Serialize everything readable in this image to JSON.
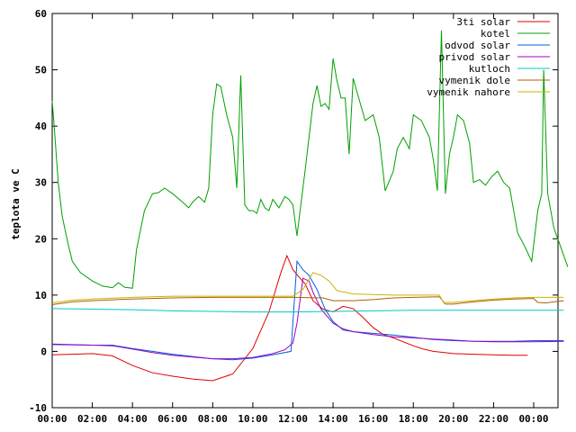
{
  "chart_data": {
    "type": "line",
    "title": "",
    "xlabel": "",
    "ylabel": "teplota ve C",
    "ylim": [
      -10,
      60
    ],
    "xlim": [
      "00:00",
      "24:00"
    ],
    "grid": false,
    "legend_position": "top-right",
    "x_ticks": [
      "00:00",
      "02:00",
      "04:00",
      "06:00",
      "08:00",
      "10:00",
      "12:00",
      "14:00",
      "16:00",
      "18:00",
      "20:00",
      "22:00",
      "00:00"
    ],
    "y_ticks": [
      -10,
      0,
      10,
      20,
      30,
      40,
      50,
      60
    ],
    "series": [
      {
        "name": "3ti solar",
        "color": "#e00000",
        "points": [
          [
            0,
            -0.6
          ],
          [
            1,
            -0.5
          ],
          [
            2,
            -0.4
          ],
          [
            3,
            -0.8
          ],
          [
            4,
            -2.5
          ],
          [
            5,
            -3.8
          ],
          [
            6,
            -4.4
          ],
          [
            7,
            -4.9
          ],
          [
            8,
            -5.2
          ],
          [
            9,
            -4.0
          ],
          [
            10,
            0.5
          ],
          [
            10.8,
            7.0
          ],
          [
            11.4,
            14.0
          ],
          [
            11.7,
            17.0
          ],
          [
            12.0,
            14.5
          ],
          [
            12.3,
            13.2
          ],
          [
            12.6,
            12.0
          ],
          [
            13.0,
            9.0
          ],
          [
            13.5,
            7.5
          ],
          [
            14.0,
            7.0
          ],
          [
            14.5,
            8.0
          ],
          [
            15.0,
            7.6
          ],
          [
            15.5,
            6.0
          ],
          [
            16.0,
            4.2
          ],
          [
            16.5,
            3.0
          ],
          [
            17.0,
            2.4
          ],
          [
            17.5,
            1.7
          ],
          [
            18.0,
            1.0
          ],
          [
            18.5,
            0.4
          ],
          [
            19,
            0.0
          ],
          [
            20,
            -0.4
          ],
          [
            21,
            -0.5
          ],
          [
            22,
            -0.6
          ],
          [
            23,
            -0.7
          ],
          [
            23.7,
            -0.7
          ]
        ]
      },
      {
        "name": "kotel",
        "color": "#00a000",
        "points": [
          [
            0,
            44.5
          ],
          [
            0.1,
            40
          ],
          [
            0.3,
            30
          ],
          [
            0.5,
            24
          ],
          [
            0.8,
            19
          ],
          [
            1.0,
            16
          ],
          [
            1.4,
            14
          ],
          [
            2,
            12.5
          ],
          [
            2.5,
            11.6
          ],
          [
            3,
            11.3
          ],
          [
            3.3,
            12.2
          ],
          [
            3.6,
            11.4
          ],
          [
            4,
            11.2
          ],
          [
            4.2,
            18
          ],
          [
            4.6,
            25
          ],
          [
            5,
            28
          ],
          [
            5.3,
            28.2
          ],
          [
            5.6,
            29
          ],
          [
            6,
            28
          ],
          [
            6.5,
            26.5
          ],
          [
            6.8,
            25.5
          ],
          [
            7,
            26.5
          ],
          [
            7.3,
            27.5
          ],
          [
            7.6,
            26.5
          ],
          [
            7.8,
            29
          ],
          [
            8,
            42
          ],
          [
            8.2,
            47.5
          ],
          [
            8.4,
            47
          ],
          [
            8.7,
            42
          ],
          [
            9,
            38
          ],
          [
            9.2,
            29
          ],
          [
            9.4,
            49
          ],
          [
            9.6,
            26
          ],
          [
            9.8,
            25
          ],
          [
            10.0,
            25
          ],
          [
            10.2,
            24.5
          ],
          [
            10.4,
            27
          ],
          [
            10.6,
            25.5
          ],
          [
            10.8,
            25
          ],
          [
            11.0,
            27
          ],
          [
            11.3,
            25.5
          ],
          [
            11.6,
            27.5
          ],
          [
            11.8,
            27
          ],
          [
            12.0,
            26
          ],
          [
            12.2,
            20.5
          ],
          [
            12.6,
            32
          ],
          [
            13.0,
            44
          ],
          [
            13.2,
            47.2
          ],
          [
            13.4,
            43.5
          ],
          [
            13.6,
            44
          ],
          [
            13.8,
            43
          ],
          [
            14.0,
            52
          ],
          [
            14.2,
            48
          ],
          [
            14.4,
            45
          ],
          [
            14.6,
            45
          ],
          [
            14.8,
            35
          ],
          [
            15.0,
            48.5
          ],
          [
            15.2,
            46
          ],
          [
            15.6,
            41
          ],
          [
            16,
            42
          ],
          [
            16.3,
            38
          ],
          [
            16.6,
            28.5
          ],
          [
            17,
            32
          ],
          [
            17.2,
            36
          ],
          [
            17.5,
            38
          ],
          [
            17.8,
            36
          ],
          [
            18,
            42
          ],
          [
            18.4,
            41
          ],
          [
            18.8,
            38
          ],
          [
            19,
            34
          ],
          [
            19.2,
            28.5
          ],
          [
            19.4,
            57
          ],
          [
            19.6,
            28
          ],
          [
            19.8,
            35
          ],
          [
            20,
            38
          ],
          [
            20.2,
            42
          ],
          [
            20.5,
            41
          ],
          [
            20.8,
            37
          ],
          [
            21,
            30
          ],
          [
            21.3,
            30.5
          ],
          [
            21.6,
            29.5
          ],
          [
            21.9,
            31
          ],
          [
            22.2,
            32
          ],
          [
            22.5,
            30
          ],
          [
            22.8,
            29
          ],
          [
            23.2,
            21
          ],
          [
            23.5,
            19
          ],
          [
            23.9,
            16
          ],
          [
            24.2,
            25
          ],
          [
            24.4,
            28
          ],
          [
            24.5,
            50
          ],
          [
            24.7,
            28
          ],
          [
            25,
            22
          ],
          [
            25.4,
            18
          ],
          [
            25.7,
            15
          ]
        ]
      },
      {
        "name": "odvod solar",
        "color": "#0060e0",
        "points": [
          [
            0,
            1.3
          ],
          [
            2,
            1.1
          ],
          [
            3,
            1.1
          ],
          [
            4,
            0.5
          ],
          [
            5,
            0.0
          ],
          [
            6,
            -0.5
          ],
          [
            7,
            -0.9
          ],
          [
            8,
            -1.3
          ],
          [
            9,
            -1.5
          ],
          [
            10,
            -1.2
          ],
          [
            11,
            -0.6
          ],
          [
            11.9,
            0.0
          ],
          [
            12.2,
            16.0
          ],
          [
            12.5,
            14.5
          ],
          [
            12.8,
            13.5
          ],
          [
            13.2,
            11.0
          ],
          [
            13.6,
            7.5
          ],
          [
            14.0,
            5.3
          ],
          [
            14.5,
            3.8
          ],
          [
            15,
            3.5
          ],
          [
            16,
            3.2
          ],
          [
            17,
            2.9
          ],
          [
            18,
            2.5
          ],
          [
            19,
            2.1
          ],
          [
            20,
            1.9
          ],
          [
            21,
            1.8
          ],
          [
            22,
            1.8
          ],
          [
            23,
            1.8
          ],
          [
            24,
            1.9
          ],
          [
            25.5,
            1.9
          ]
        ]
      },
      {
        "name": "privod solar",
        "color": "#a000c0",
        "points": [
          [
            0,
            1.2
          ],
          [
            2,
            1.1
          ],
          [
            3,
            1.0
          ],
          [
            4,
            0.4
          ],
          [
            5,
            -0.2
          ],
          [
            6,
            -0.7
          ],
          [
            7,
            -1.0
          ],
          [
            8,
            -1.3
          ],
          [
            9,
            -1.3
          ],
          [
            10,
            -1.1
          ],
          [
            11,
            -0.4
          ],
          [
            11.6,
            0.3
          ],
          [
            12.0,
            1.5
          ],
          [
            12.2,
            5.0
          ],
          [
            12.5,
            13.0
          ],
          [
            12.8,
            12.5
          ],
          [
            13.0,
            10.5
          ],
          [
            13.4,
            7.5
          ],
          [
            14.0,
            5.0
          ],
          [
            14.5,
            4.0
          ],
          [
            15,
            3.5
          ],
          [
            16,
            3.0
          ],
          [
            17,
            2.6
          ],
          [
            18,
            2.4
          ],
          [
            19,
            2.2
          ],
          [
            20,
            2.0
          ],
          [
            21,
            1.8
          ],
          [
            22,
            1.7
          ],
          [
            23,
            1.7
          ],
          [
            24,
            1.7
          ],
          [
            25.5,
            1.8
          ]
        ]
      },
      {
        "name": "kutloch",
        "color": "#00c8c8",
        "points": [
          [
            0,
            7.6
          ],
          [
            2,
            7.5
          ],
          [
            4,
            7.4
          ],
          [
            6,
            7.2
          ],
          [
            8,
            7.1
          ],
          [
            10,
            7.0
          ],
          [
            12,
            7.0
          ],
          [
            14,
            7.1
          ],
          [
            16,
            7.2
          ],
          [
            18,
            7.3
          ],
          [
            20,
            7.3
          ],
          [
            22,
            7.3
          ],
          [
            24,
            7.3
          ],
          [
            25.5,
            7.3
          ]
        ]
      },
      {
        "name": "vymenik dole",
        "color": "#b06000",
        "points": [
          [
            0,
            8.3
          ],
          [
            1,
            8.8
          ],
          [
            2,
            9.0
          ],
          [
            4,
            9.3
          ],
          [
            6,
            9.5
          ],
          [
            8,
            9.6
          ],
          [
            10,
            9.6
          ],
          [
            12,
            9.6
          ],
          [
            13.5,
            9.5
          ],
          [
            14,
            9.0
          ],
          [
            15,
            9.0
          ],
          [
            16,
            9.2
          ],
          [
            17,
            9.5
          ],
          [
            18,
            9.6
          ],
          [
            19.3,
            9.7
          ],
          [
            19.6,
            8.4
          ],
          [
            20,
            8.4
          ],
          [
            21,
            8.8
          ],
          [
            22,
            9.1
          ],
          [
            23,
            9.3
          ],
          [
            24,
            9.4
          ],
          [
            24.2,
            8.7
          ],
          [
            24.6,
            8.6
          ],
          [
            25,
            8.8
          ],
          [
            25.5,
            9.0
          ]
        ]
      },
      {
        "name": "vymenik nahore",
        "color": "#c8b400",
        "points": [
          [
            0,
            8.6
          ],
          [
            1,
            9.1
          ],
          [
            2,
            9.3
          ],
          [
            4,
            9.6
          ],
          [
            6,
            9.8
          ],
          [
            8,
            9.8
          ],
          [
            10,
            9.8
          ],
          [
            12,
            9.8
          ],
          [
            12.5,
            11.0
          ],
          [
            13,
            14.0
          ],
          [
            13.4,
            13.5
          ],
          [
            13.8,
            12.5
          ],
          [
            14.2,
            10.8
          ],
          [
            15,
            10.2
          ],
          [
            16,
            10.1
          ],
          [
            17,
            10.0
          ],
          [
            18,
            10.0
          ],
          [
            19.3,
            10.0
          ],
          [
            19.5,
            8.7
          ],
          [
            20,
            8.7
          ],
          [
            21,
            9.0
          ],
          [
            22,
            9.3
          ],
          [
            23,
            9.5
          ],
          [
            24,
            9.6
          ],
          [
            25.5,
            9.6
          ]
        ]
      }
    ]
  }
}
